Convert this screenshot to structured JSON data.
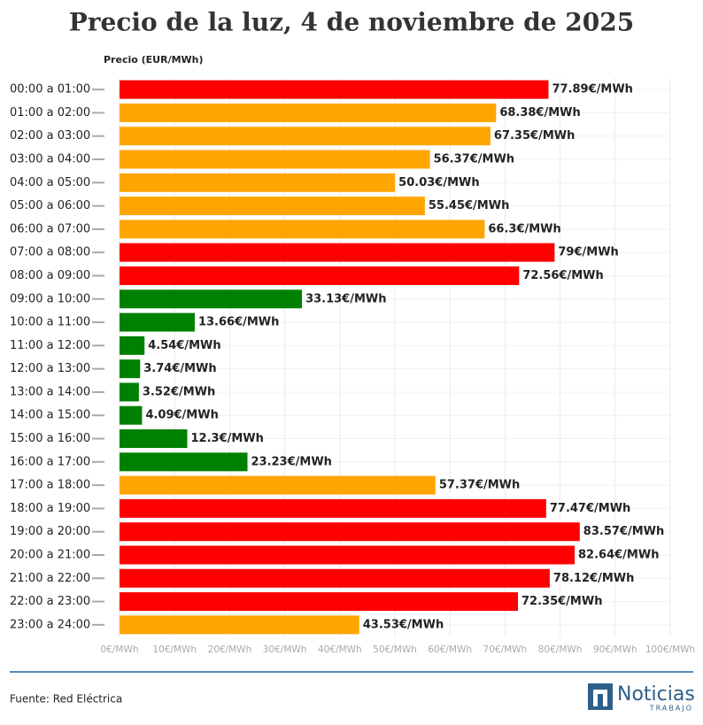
{
  "chart_data": {
    "type": "bar",
    "orientation": "horizontal",
    "title": "Precio de la luz, 4 de noviembre de 2025",
    "axis_label": "Precio (EUR/MWh)",
    "categories": [
      "00:00 a 01:00",
      "01:00 a 02:00",
      "02:00 a 03:00",
      "03:00 a 04:00",
      "04:00 a 05:00",
      "05:00 a 06:00",
      "06:00 a 07:00",
      "07:00 a 08:00",
      "08:00 a 09:00",
      "09:00 a 10:00",
      "10:00 a 11:00",
      "11:00 a 12:00",
      "12:00 a 13:00",
      "13:00 a 14:00",
      "14:00 a 15:00",
      "15:00 a 16:00",
      "16:00 a 17:00",
      "17:00 a 18:00",
      "18:00 a 19:00",
      "19:00 a 20:00",
      "20:00 a 21:00",
      "21:00 a 22:00",
      "22:00 a 23:00",
      "23:00 a 24:00"
    ],
    "values": [
      77.89,
      68.38,
      67.35,
      56.37,
      50.03,
      55.45,
      66.3,
      79,
      72.56,
      33.13,
      13.66,
      4.54,
      3.74,
      3.52,
      4.09,
      12.3,
      23.23,
      57.37,
      77.47,
      83.57,
      82.64,
      78.12,
      72.35,
      43.53
    ],
    "value_labels": [
      "77.89€/MWh",
      "68.38€/MWh",
      "67.35€/MWh",
      "56.37€/MWh",
      "50.03€/MWh",
      "55.45€/MWh",
      "66.3€/MWh",
      "79€/MWh",
      "72.56€/MWh",
      "33.13€/MWh",
      "13.66€/MWh",
      "4.54€/MWh",
      "3.74€/MWh",
      "3.52€/MWh",
      "4.09€/MWh",
      "12.3€/MWh",
      "23.23€/MWh",
      "57.37€/MWh",
      "77.47€/MWh",
      "83.57€/MWh",
      "82.64€/MWh",
      "78.12€/MWh",
      "72.35€/MWh",
      "43.53€/MWh"
    ],
    "colors": [
      "#ff0000",
      "#ffa500",
      "#ffa500",
      "#ffa500",
      "#ffa500",
      "#ffa500",
      "#ffa500",
      "#ff0000",
      "#ff0000",
      "#008000",
      "#008000",
      "#008000",
      "#008000",
      "#008000",
      "#008000",
      "#008000",
      "#008000",
      "#ffa500",
      "#ff0000",
      "#ff0000",
      "#ff0000",
      "#ff0000",
      "#ff0000",
      "#ffa500"
    ],
    "xlim": [
      0,
      100
    ],
    "xticks": [
      {
        "value": 0,
        "label": "0€/MWh"
      },
      {
        "value": 10,
        "label": "10€/MWh"
      },
      {
        "value": 20,
        "label": "20€/MWh"
      },
      {
        "value": 30,
        "label": "30€/MWh"
      },
      {
        "value": 40,
        "label": "40€/MWh"
      },
      {
        "value": 50,
        "label": "50€/MWh"
      },
      {
        "value": 60,
        "label": "60€/MWh"
      },
      {
        "value": 70,
        "label": "70€/MWh"
      },
      {
        "value": 80,
        "label": "80€/MWh"
      },
      {
        "value": 90,
        "label": "90€/MWh"
      },
      {
        "value": 100,
        "label": "100€/MWh"
      }
    ],
    "grid": true,
    "source": "Fuente: Red Eléctrica",
    "logo": {
      "name": "Noticias",
      "sub": "TRABAJO"
    }
  }
}
